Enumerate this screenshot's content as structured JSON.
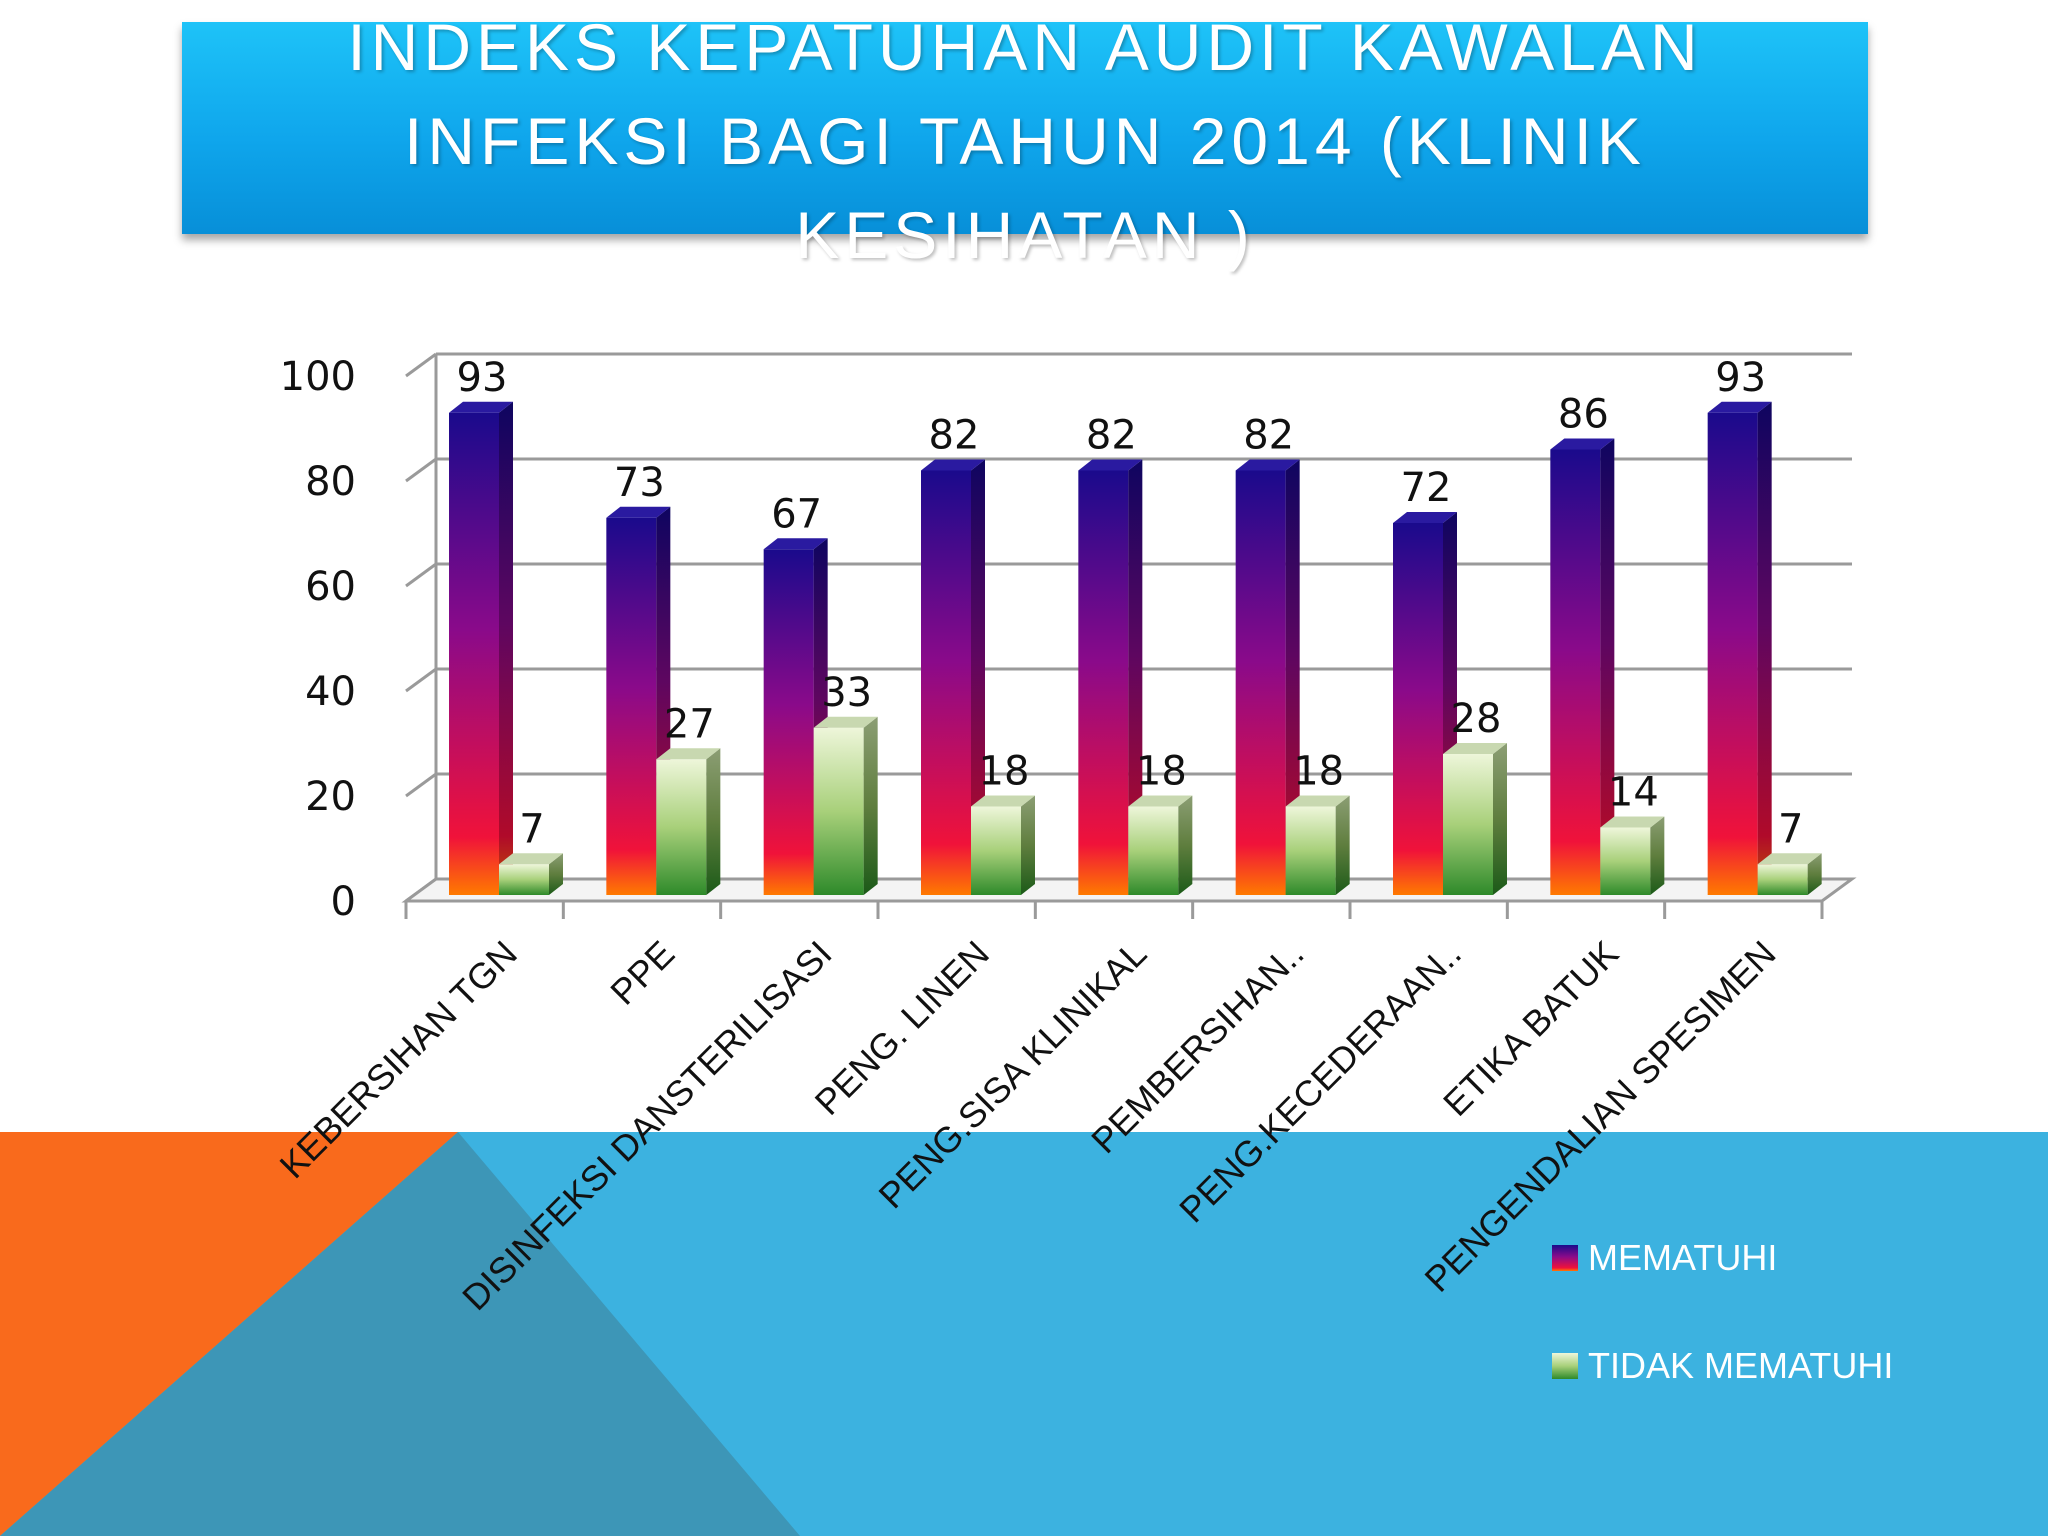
{
  "slide": {
    "title": "INDEKS KEPATUHAN AUDIT KAWALAN INFEKSI BAGI TAHUN 2014    (KLINIK KESIHATAN )",
    "colors": {
      "banner": "#10a8ee",
      "accent_orange": "#f96a1c",
      "accent_blue": "#3cb2e0",
      "accent_steel": "#3d96b7"
    }
  },
  "chart_data": {
    "type": "bar",
    "categories": [
      "KEBERSIHAN TGN",
      "PPE",
      "DISINFEKSI DANSTERILISASI",
      "PENG. LINEN",
      "PENG.SISA KLINIKAL",
      "PEMBERSIHAN..",
      "PENG.KECEDERAAN..",
      "ETIKA BATUK",
      "PENGENDALIAN SPESIMEN"
    ],
    "series": [
      {
        "name": "MEMATUHI",
        "values": [
          93,
          73,
          67,
          82,
          82,
          82,
          72,
          86,
          93
        ],
        "color": "#1a0a8c",
        "gradient": [
          "#1a0a8c",
          "#8a0a8a",
          "#f0123a",
          "#ff7a00"
        ]
      },
      {
        "name": "TIDAK MEMATUHI",
        "values": [
          7,
          27,
          33,
          18,
          18,
          18,
          28,
          14,
          7
        ],
        "color": "#2e8a2a",
        "gradient": [
          "#eef6da",
          "#a8d07a",
          "#2e8a2a"
        ]
      }
    ],
    "yticks": [
      "0",
      "20",
      "40",
      "60",
      "80",
      "100"
    ],
    "ylim": [
      0,
      100
    ],
    "grid": true,
    "legend_position": "bottom-right",
    "three_d": true
  }
}
